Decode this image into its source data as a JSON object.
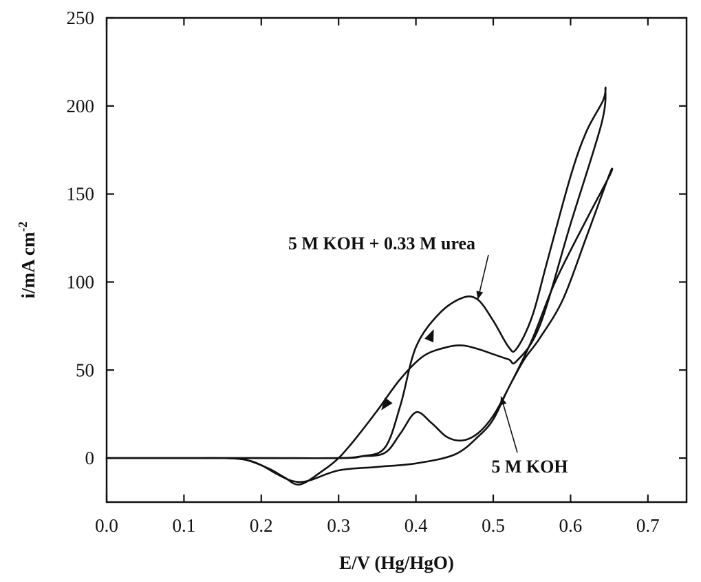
{
  "chart_data": {
    "type": "line",
    "title": "",
    "xlabel": "E/V (Hg/HgO)",
    "ylabel": "i/mA cm",
    "ylabel_superscript": "-2",
    "xlim": [
      0.0,
      0.75
    ],
    "ylim": [
      -25,
      250
    ],
    "xticks": [
      0.0,
      0.1,
      0.2,
      0.3,
      0.4,
      0.5,
      0.6,
      0.7
    ],
    "xtick_labels": [
      "0.0",
      "0.1",
      "0.2",
      "0.3",
      "0.4",
      "0.5",
      "0.6",
      "0.7"
    ],
    "yticks": [
      0,
      50,
      100,
      150,
      200,
      250
    ],
    "ytick_labels": [
      "0",
      "50",
      "100",
      "150",
      "200",
      "250"
    ],
    "grid": false,
    "annotations": [
      {
        "text": "5 M KOH + 0.33 M urea",
        "points_to": {
          "x": 0.48,
          "y": 90
        }
      },
      {
        "text": "5 M KOH",
        "points_to": {
          "x": 0.51,
          "y": 35
        }
      }
    ],
    "series": [
      {
        "id": "urea",
        "label": "5 M KOH + 0.33 M urea",
        "x": [
          0.0,
          0.1,
          0.2,
          0.3,
          0.33,
          0.36,
          0.38,
          0.4,
          0.43,
          0.46,
          0.48,
          0.5,
          0.52,
          0.53,
          0.55,
          0.57,
          0.6,
          0.62,
          0.642,
          0.645,
          0.64,
          0.6,
          0.56,
          0.53,
          0.52,
          0.5,
          0.48,
          0.46,
          0.44,
          0.41,
          0.38,
          0.35,
          0.32,
          0.3,
          0.28,
          0.25,
          0.23,
          0.21,
          0.18,
          0.15,
          0.1,
          0.0
        ],
        "y": [
          0,
          0,
          0,
          0,
          1,
          6,
          30,
          63,
          82,
          91,
          90,
          78,
          63,
          62,
          80,
          112,
          160,
          185,
          203,
          210,
          190,
          133,
          75,
          55,
          56,
          59,
          62,
          64,
          63,
          58,
          45,
          27,
          10,
          0,
          -7,
          -15,
          -11,
          -6,
          -1,
          0,
          0,
          0
        ]
      },
      {
        "id": "koh",
        "label": "5 M KOH",
        "x": [
          0.0,
          0.2,
          0.3,
          0.33,
          0.36,
          0.38,
          0.4,
          0.42,
          0.44,
          0.46,
          0.48,
          0.5,
          0.52,
          0.55,
          0.58,
          0.62,
          0.65,
          0.653,
          0.645,
          0.62,
          0.59,
          0.56,
          0.54,
          0.52,
          0.5,
          0.48,
          0.45,
          0.4,
          0.35,
          0.3,
          0.26,
          0.24,
          0.22,
          0.2,
          0.18,
          0.15,
          0.1,
          0.0
        ],
        "y": [
          0,
          0,
          0,
          1,
          3,
          14,
          26,
          20,
          12,
          10,
          14,
          24,
          40,
          67,
          100,
          135,
          160,
          164,
          155,
          125,
          90,
          68,
          56,
          40,
          22,
          12,
          2,
          -3,
          -5,
          -7,
          -13,
          -13,
          -9,
          -4,
          -1,
          0,
          0,
          0
        ]
      }
    ],
    "direction_arrows": [
      {
        "series": "urea",
        "x": 0.42,
        "y": 70,
        "direction": "up"
      },
      {
        "series": "urea",
        "x": 0.36,
        "y": 30,
        "direction": "down"
      }
    ]
  }
}
